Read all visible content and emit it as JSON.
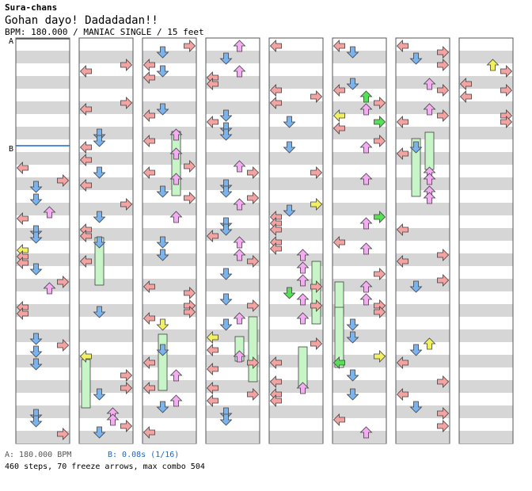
{
  "header": {
    "author": "Sura-chans",
    "song_title": "Gohan dayo! Dadadadan!!",
    "meta_line": "BPM: 180.000 / MANIAC SINGLE / 15 feet"
  },
  "markers": {
    "a": "A",
    "b": "B"
  },
  "footer": {
    "bpm_legend": "A: 180.000 BPM",
    "stop_legend": "B: 0.08s (1/16)",
    "stats_line": "460 steps, 70 freeze arrows, max combo 504"
  },
  "colors": {
    "left": "#f4a3a3",
    "down": "#7ab4f0",
    "up": "#f2aef0",
    "right": "#f4a3a3",
    "green": "#55e055",
    "yellow": "#f0f060",
    "freeze": "#c8f5c8",
    "stripe": "#d6d6d6",
    "outline": "#404040"
  },
  "chart_data": {
    "type": "step-chart",
    "columns": 8,
    "lanes": [
      "left",
      "down",
      "up",
      "right"
    ],
    "note_types": [
      "left-arrow",
      "down-arrow",
      "up-arrow",
      "right-arrow",
      "freeze-arrow"
    ]
  }
}
